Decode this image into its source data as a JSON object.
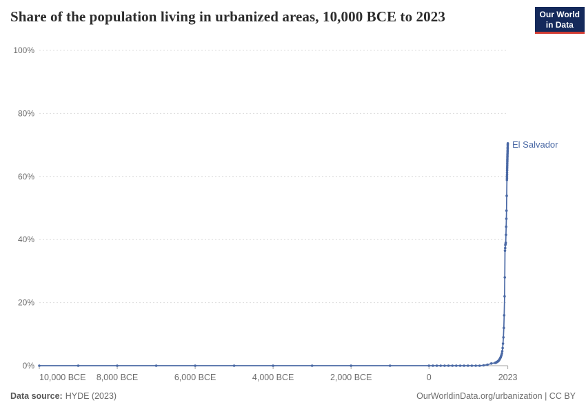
{
  "header": {
    "title": "Share of the population living in urbanized areas, 10,000 BCE to 2023",
    "logo": {
      "line1": "Our World",
      "line2": "in Data",
      "bg_color": "#14295b",
      "underline_color": "#d13b33"
    }
  },
  "footer": {
    "source_label": "Data source:",
    "source_value": "HYDE (2023)",
    "credit": "OurWorldinData.org/urbanization | CC BY"
  },
  "chart_data": {
    "type": "line",
    "title": "Share of the population living in urbanized areas, 10,000 BCE to 2023",
    "entity_label": "El Salvador",
    "colors": {
      "line": "#4a69a5",
      "grid": "#dcdcdc",
      "axis_text": "#6b6b6b",
      "axis_line": "#a3a3a3"
    },
    "xlim": [
      -10000,
      2023
    ],
    "ylim": [
      0,
      100
    ],
    "grid": "dashed-horizontal",
    "legend_position": "end-of-line-label",
    "x_ticks": [
      {
        "value": -10000,
        "label": "10,000 BCE"
      },
      {
        "value": -8000,
        "label": "8,000 BCE"
      },
      {
        "value": -6000,
        "label": "6,000 BCE"
      },
      {
        "value": -4000,
        "label": "4,000 BCE"
      },
      {
        "value": -2000,
        "label": "2,000 BCE"
      },
      {
        "value": 0,
        "label": "0"
      },
      {
        "value": 2023,
        "label": "2023"
      }
    ],
    "y_ticks": [
      {
        "value": 0,
        "label": "0%"
      },
      {
        "value": 20,
        "label": "20%"
      },
      {
        "value": 40,
        "label": "40%"
      },
      {
        "value": 60,
        "label": "60%"
      },
      {
        "value": 80,
        "label": "80%"
      },
      {
        "value": 100,
        "label": "100%"
      }
    ],
    "series": [
      {
        "name": "El Salvador",
        "points": [
          [
            -10000,
            0
          ],
          [
            -9000,
            0
          ],
          [
            -8000,
            0
          ],
          [
            -7000,
            0
          ],
          [
            -6000,
            0
          ],
          [
            -5000,
            0
          ],
          [
            -4000,
            0
          ],
          [
            -3000,
            0
          ],
          [
            -2000,
            0
          ],
          [
            -1000,
            0
          ],
          [
            0,
            0
          ],
          [
            100,
            0
          ],
          [
            200,
            0
          ],
          [
            300,
            0
          ],
          [
            400,
            0
          ],
          [
            500,
            0
          ],
          [
            600,
            0
          ],
          [
            700,
            0
          ],
          [
            800,
            0
          ],
          [
            900,
            0
          ],
          [
            1000,
            0
          ],
          [
            1100,
            0
          ],
          [
            1200,
            0
          ],
          [
            1300,
            0
          ],
          [
            1400,
            0.1
          ],
          [
            1500,
            0.3
          ],
          [
            1600,
            0.7
          ],
          [
            1700,
            0.9
          ],
          [
            1710,
            0.95
          ],
          [
            1720,
            1
          ],
          [
            1730,
            1.1
          ],
          [
            1740,
            1.15
          ],
          [
            1750,
            1.2
          ],
          [
            1760,
            1.3
          ],
          [
            1770,
            1.4
          ],
          [
            1780,
            1.5
          ],
          [
            1790,
            1.65
          ],
          [
            1800,
            1.8
          ],
          [
            1810,
            2
          ],
          [
            1820,
            2.2
          ],
          [
            1830,
            2.45
          ],
          [
            1840,
            2.7
          ],
          [
            1850,
            3
          ],
          [
            1860,
            3.4
          ],
          [
            1870,
            3.9
          ],
          [
            1880,
            4.6
          ],
          [
            1890,
            5.6
          ],
          [
            1900,
            7
          ],
          [
            1910,
            9
          ],
          [
            1920,
            12
          ],
          [
            1930,
            16
          ],
          [
            1940,
            22
          ],
          [
            1945,
            28
          ],
          [
            1950,
            36.5
          ],
          [
            1955,
            37.3
          ],
          [
            1960,
            38.3
          ],
          [
            1965,
            38.6
          ],
          [
            1970,
            39
          ],
          [
            1975,
            41.5
          ],
          [
            1980,
            44.1
          ],
          [
            1985,
            46.6
          ],
          [
            1990,
            49.2
          ],
          [
            1995,
            53.9
          ],
          [
            2000,
            58.9
          ],
          [
            2001,
            59.5
          ],
          [
            2002,
            60.1
          ],
          [
            2003,
            60.7
          ],
          [
            2004,
            61.3
          ],
          [
            2005,
            61.9
          ],
          [
            2006,
            62.4
          ],
          [
            2007,
            63
          ],
          [
            2008,
            63.6
          ],
          [
            2009,
            64.2
          ],
          [
            2010,
            64.7
          ],
          [
            2011,
            65.2
          ],
          [
            2012,
            65.6
          ],
          [
            2013,
            66.1
          ],
          [
            2014,
            66.5
          ],
          [
            2015,
            67
          ],
          [
            2016,
            67.4
          ],
          [
            2017,
            67.9
          ],
          [
            2018,
            68.3
          ],
          [
            2019,
            68.8
          ],
          [
            2020,
            69.2
          ],
          [
            2021,
            69.7
          ],
          [
            2022,
            70.1
          ],
          [
            2023,
            70.5
          ]
        ]
      }
    ]
  }
}
